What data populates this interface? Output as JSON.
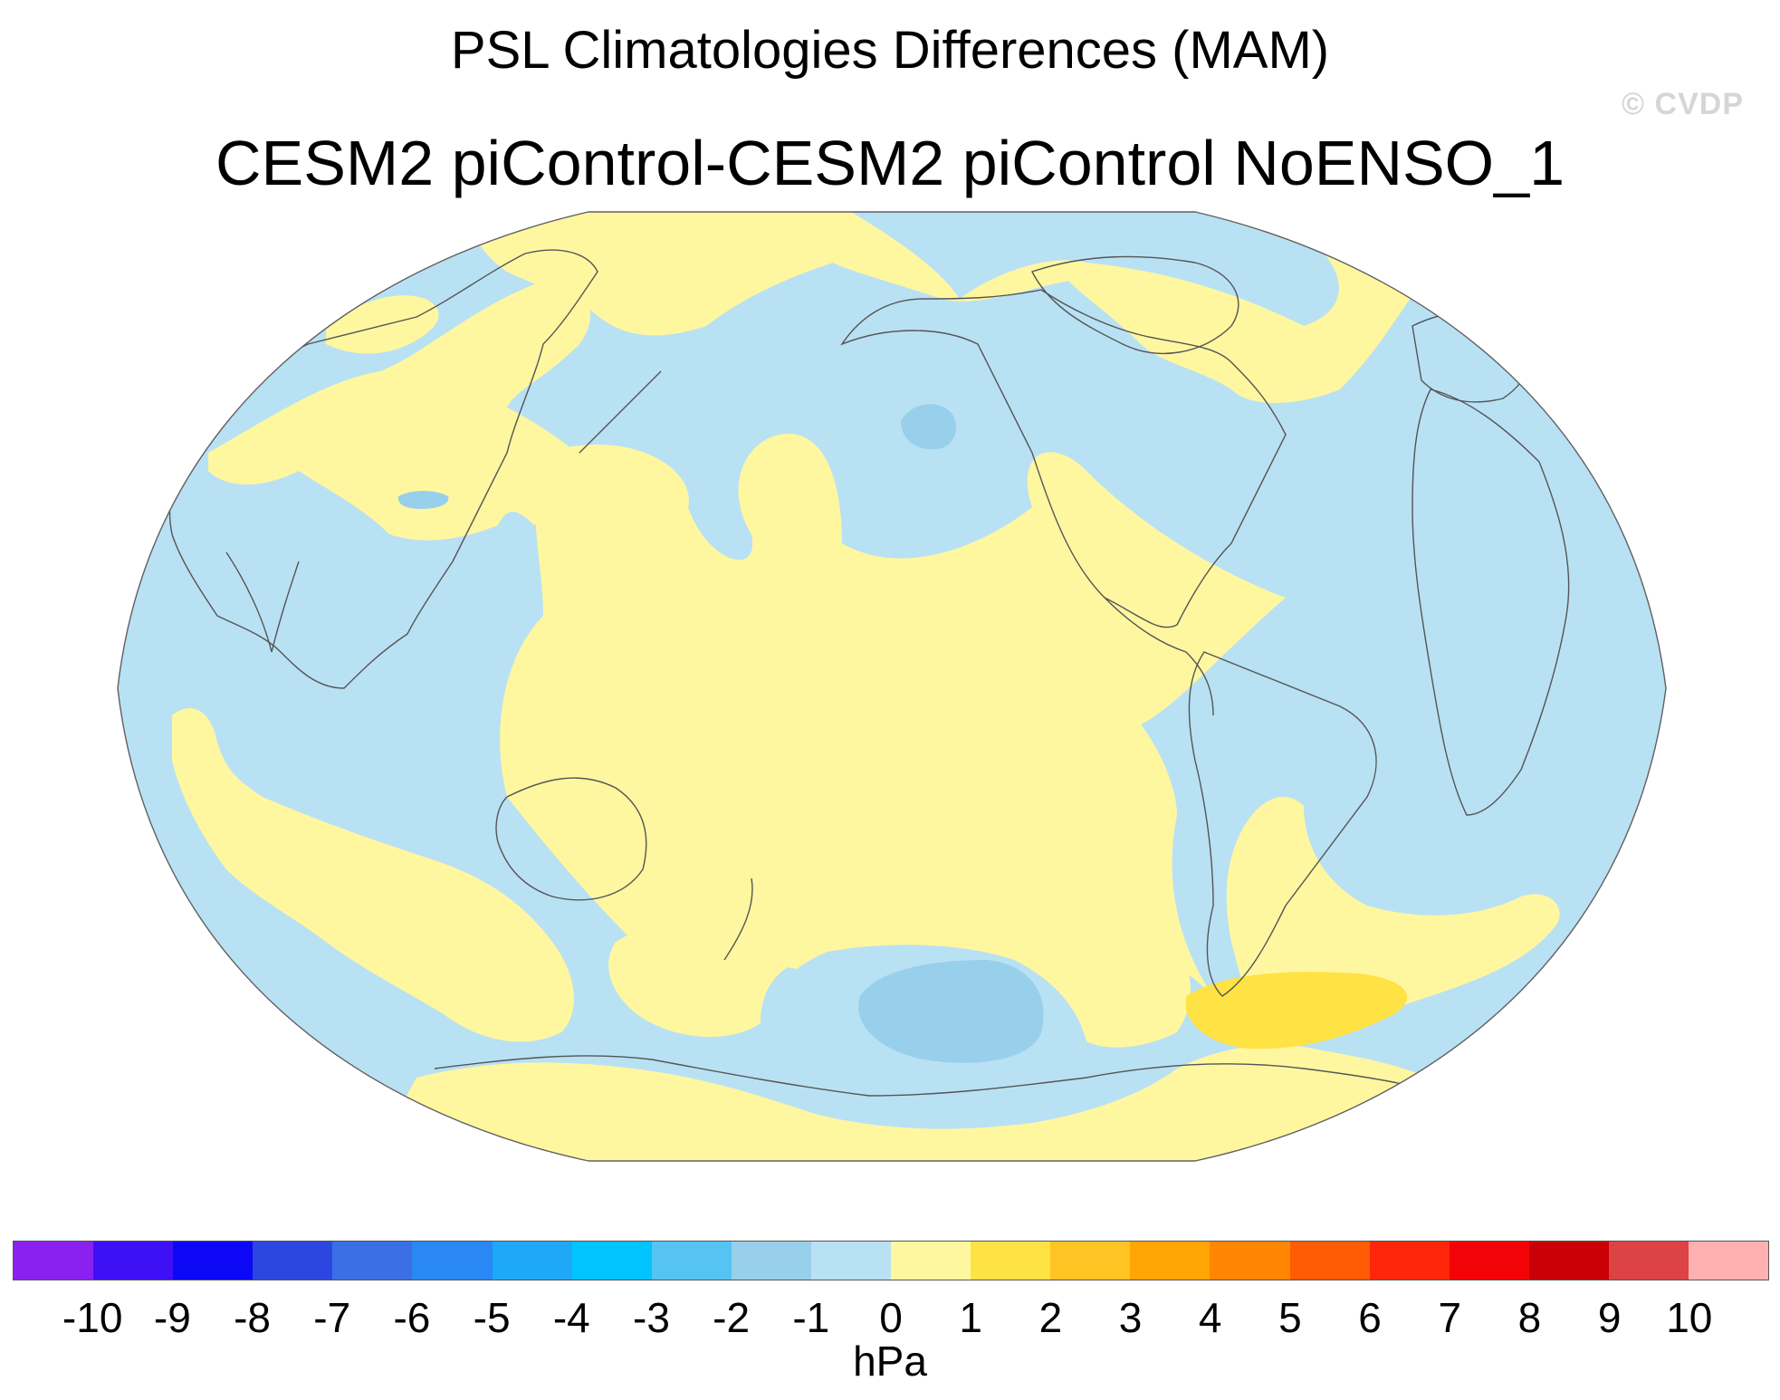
{
  "title": "PSL Climatologies Differences (MAM)",
  "subtitle": "CESM2 piControl-CESM2 piControl NoENSO_1",
  "watermark": "© CVDP",
  "colorbar": {
    "units": "hPa",
    "tick_labels": [
      "-10",
      "-9",
      "-8",
      "-7",
      "-6",
      "-5",
      "-4",
      "-3",
      "-2",
      "-1",
      "0",
      "1",
      "2",
      "3",
      "4",
      "5",
      "6",
      "7",
      "8",
      "9",
      "10"
    ],
    "colors": [
      "#8b21f0",
      "#3e10f5",
      "#0c08f5",
      "#2c47e0",
      "#3a6fe6",
      "#2a88f5",
      "#1ea8f7",
      "#00c4fb",
      "#56c4f2",
      "#98d0ec",
      "#b9e1f4",
      "#fff7a0",
      "#ffe243",
      "#ffc423",
      "#ffa605",
      "#ff8603",
      "#ff5c05",
      "#ff2709",
      "#f20307",
      "#c90005",
      "#dd4245",
      "#ffb1b1"
    ]
  },
  "map": {
    "projection": "Robinson, Pacific-centered",
    "colors": {
      "ocean_default": "#b9e1f4",
      "positive_small": "#fff7a0",
      "positive_medium": "#ffe243",
      "negative_medium": "#98d0ec",
      "outline": "#606060",
      "coast": "#555555"
    }
  }
}
